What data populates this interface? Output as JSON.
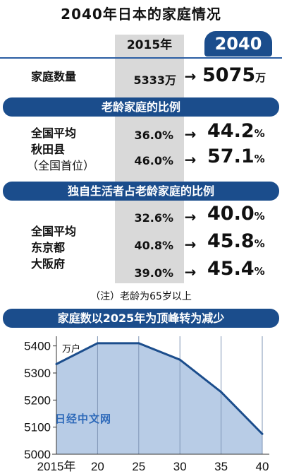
{
  "title": "2040年日本的家庭情况",
  "headers": {
    "y2015": "2015年",
    "y2040": "2040"
  },
  "households": {
    "label": "家庭数量",
    "v2015": "5333万",
    "v2040": "5075",
    "v2040_unit": "万"
  },
  "arrow": "→",
  "section1": {
    "banner": "老龄家庭的比例",
    "labels": [
      "全国平均",
      "秋田县",
      "（全国首位）"
    ],
    "rows": [
      {
        "v2015": "36.0%",
        "v2040": "44.2",
        "unit": "%"
      },
      {
        "v2015": "46.0%",
        "v2040": "57.1",
        "unit": "%"
      }
    ]
  },
  "section2": {
    "banner": "独自生活者占老龄家庭的比例",
    "labels": [
      "全国平均",
      "东京都",
      "大阪府"
    ],
    "rows": [
      {
        "v2015": "32.6%",
        "v2040": "40.0",
        "unit": "%"
      },
      {
        "v2015": "40.8%",
        "v2040": "45.8",
        "unit": "%"
      },
      {
        "v2015": "39.0%",
        "v2040": "45.4",
        "unit": "%"
      }
    ]
  },
  "note": "（注）老龄为65岁以上",
  "chart_banner": "家庭数以2025年为顶峰转为减少",
  "watermark": "日经中文网",
  "chart_data": {
    "type": "area",
    "title": "家庭数以2025年为顶峰转为减少",
    "ylabel": "万户",
    "categories": [
      "2015年",
      "20",
      "25",
      "30",
      "35",
      "40"
    ],
    "values": [
      5333,
      5410,
      5410,
      5349,
      5230,
      5075
    ],
    "yticks": [
      5000,
      5100,
      5200,
      5300,
      5400
    ],
    "ylim": [
      5000,
      5420
    ],
    "fill": "#b8cce6",
    "line": "#1b4d8c",
    "grid": "vertical"
  }
}
